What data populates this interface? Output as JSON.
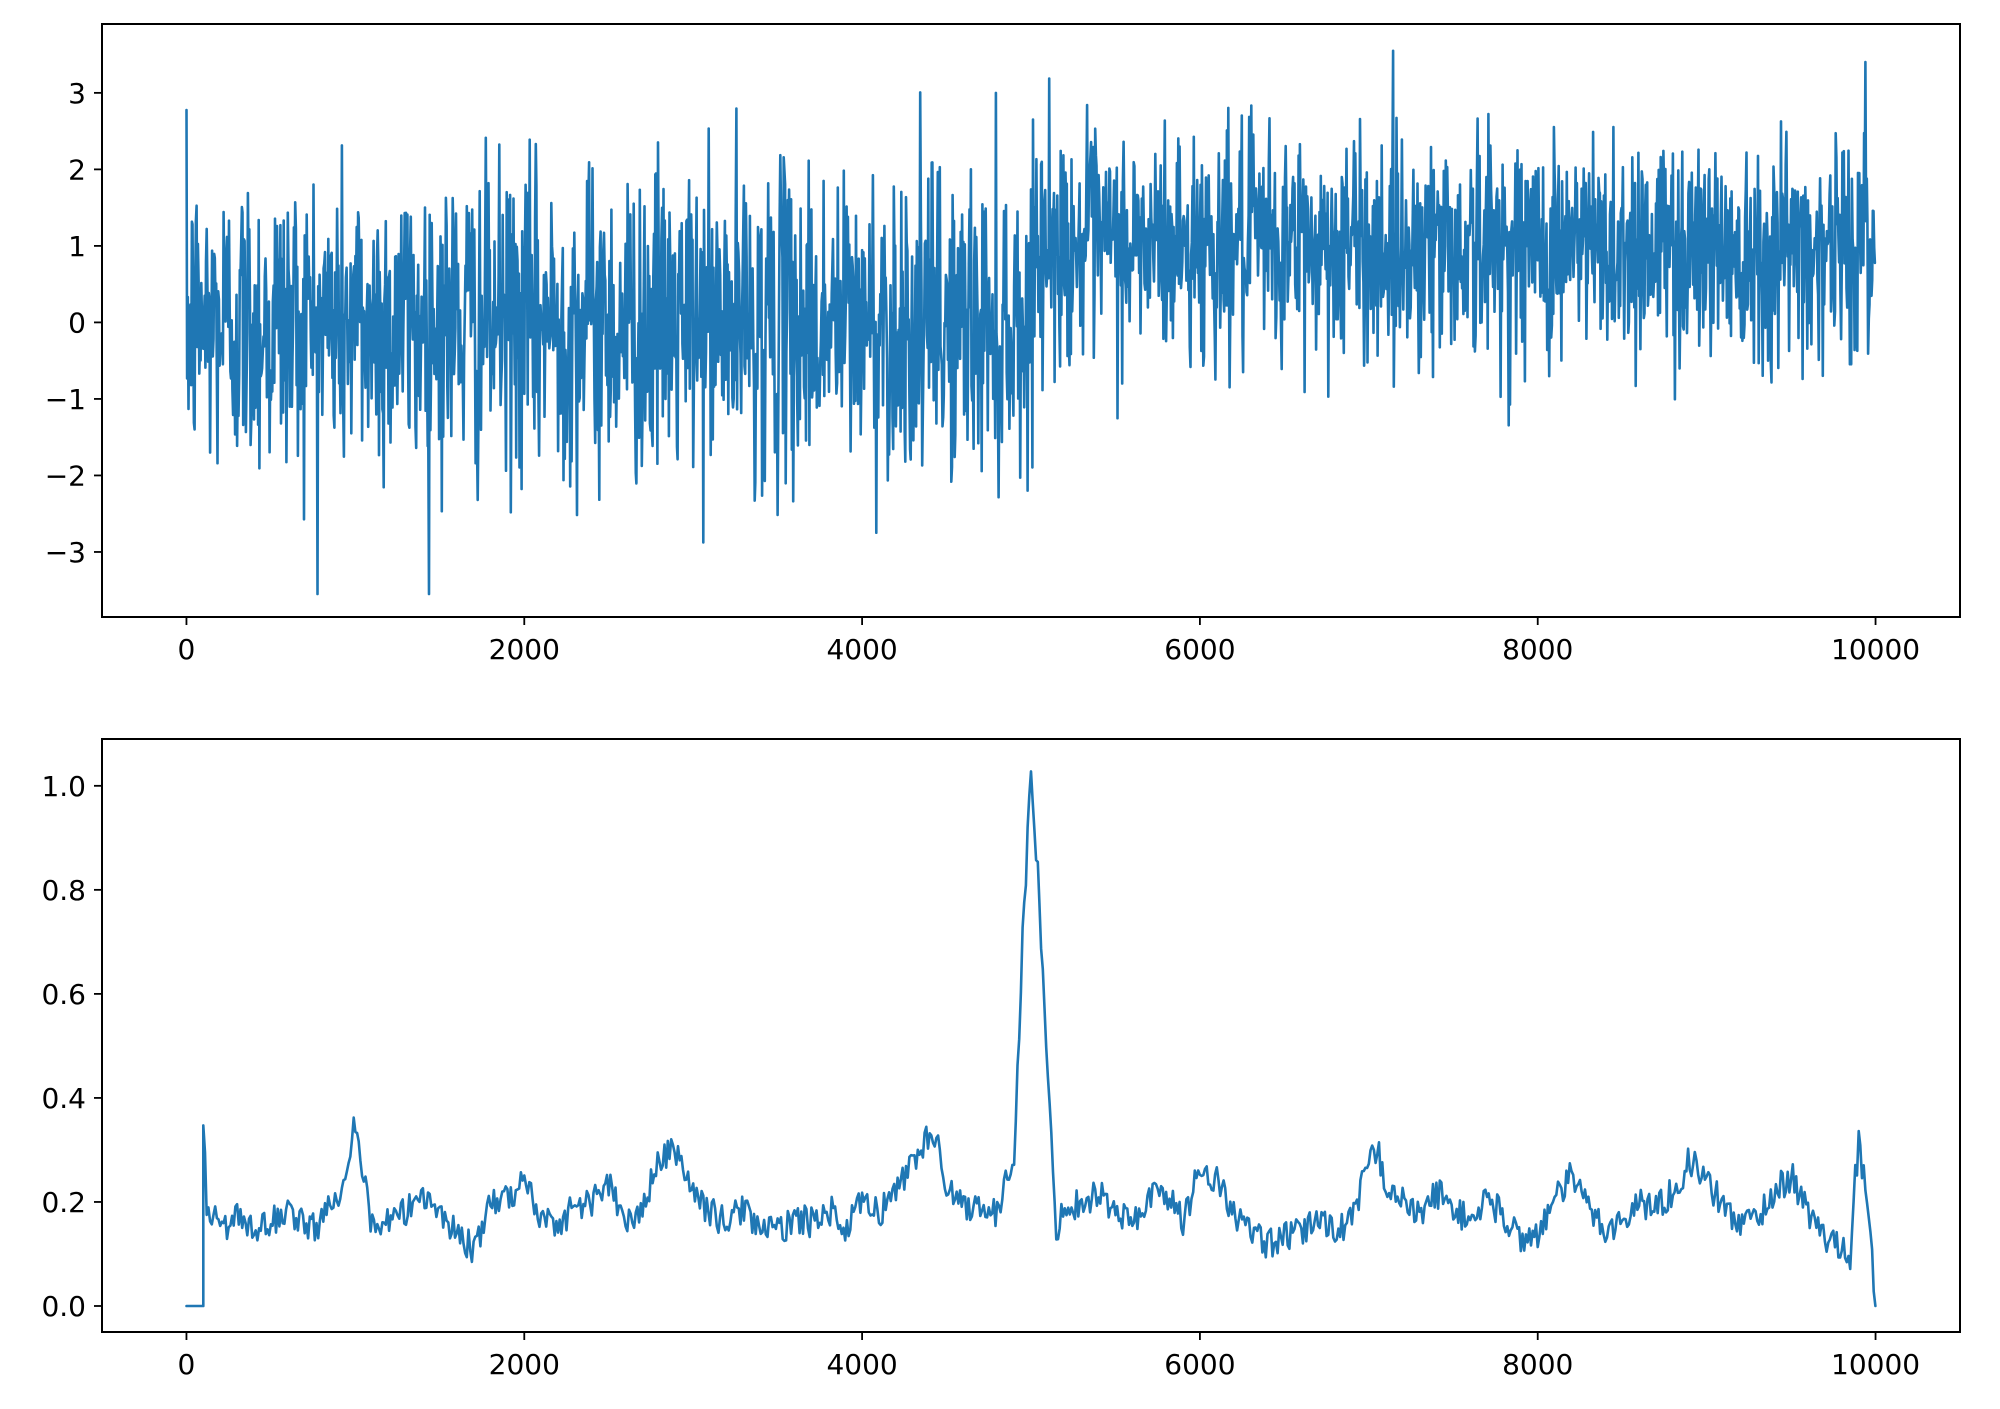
{
  "colors": {
    "series": "#1f77b4",
    "axes": "#000000",
    "background": "#ffffff"
  },
  "chart_data": [
    {
      "type": "line",
      "title": "",
      "xlabel": "",
      "ylabel": "",
      "xlim": [
        -500,
        10500
      ],
      "ylim": [
        -3.85,
        3.9
      ],
      "grid": false,
      "legend": "none",
      "x_ticks": [
        0,
        2000,
        4000,
        6000,
        8000,
        10000
      ],
      "x_tick_labels": [
        "0",
        "2000",
        "4000",
        "6000",
        "8000",
        "10000"
      ],
      "y_ticks": [
        -3,
        -2,
        -1,
        0,
        1,
        2,
        3
      ],
      "y_tick_labels": [
        "−3",
        "−2",
        "−1",
        "0",
        "1",
        "2",
        "3"
      ],
      "series": [
        {
          "x_range": [
            0,
            9999
          ],
          "segments": [
            {
              "x_start": 0,
              "x_end": 5000,
              "mean": 0.0,
              "std": 1.0
            },
            {
              "x_start": 5000,
              "x_end": 9999,
              "mean": 1.0,
              "std": 0.75
            }
          ],
          "y_min": -3.55,
          "y_max": 3.55
        }
      ]
    },
    {
      "type": "line",
      "title": "",
      "xlabel": "",
      "ylabel": "",
      "xlim": [
        -500,
        10500
      ],
      "ylim": [
        -0.05,
        1.09
      ],
      "grid": false,
      "legend": "none",
      "x_ticks": [
        0,
        2000,
        4000,
        6000,
        8000,
        10000
      ],
      "x_tick_labels": [
        "0",
        "2000",
        "4000",
        "6000",
        "8000",
        "10000"
      ],
      "y_ticks": [
        0.0,
        0.2,
        0.4,
        0.6,
        0.8,
        1.0
      ],
      "y_tick_labels": [
        "0.0",
        "0.2",
        "0.4",
        "0.6",
        "0.8",
        "1.0"
      ],
      "series": [
        {
          "x": [
            0,
            100,
            100,
            120,
            150,
            200,
            300,
            400,
            500,
            600,
            700,
            800,
            900,
            950,
            1000,
            1050,
            1100,
            1200,
            1300,
            1400,
            1500,
            1600,
            1700,
            1800,
            1900,
            2000,
            2100,
            2200,
            2300,
            2400,
            2500,
            2600,
            2700,
            2800,
            2900,
            2950,
            3000,
            3100,
            3200,
            3300,
            3400,
            3500,
            3600,
            3700,
            3800,
            3900,
            4000,
            4100,
            4200,
            4300,
            4400,
            4450,
            4500,
            4600,
            4700,
            4800,
            4900,
            4950,
            5000,
            5050,
            5100,
            5150,
            5200,
            5300,
            5400,
            5500,
            5600,
            5700,
            5800,
            5900,
            6000,
            6100,
            6200,
            6300,
            6400,
            6500,
            6600,
            6700,
            6800,
            6900,
            7000,
            7050,
            7100,
            7200,
            7300,
            7400,
            7500,
            7600,
            7700,
            7800,
            7900,
            8000,
            8100,
            8200,
            8300,
            8400,
            8500,
            8600,
            8700,
            8800,
            8900,
            9000,
            9100,
            9200,
            9300,
            9400,
            9500,
            9600,
            9700,
            9800,
            9850,
            9880,
            9900,
            9950,
            9999
          ],
          "values": [
            0.0,
            0.0,
            0.37,
            0.2,
            0.18,
            0.15,
            0.17,
            0.14,
            0.16,
            0.19,
            0.15,
            0.16,
            0.22,
            0.28,
            0.36,
            0.25,
            0.15,
            0.16,
            0.18,
            0.22,
            0.18,
            0.14,
            0.11,
            0.19,
            0.21,
            0.24,
            0.17,
            0.16,
            0.19,
            0.2,
            0.24,
            0.15,
            0.19,
            0.28,
            0.3,
            0.26,
            0.22,
            0.18,
            0.16,
            0.19,
            0.15,
            0.14,
            0.17,
            0.16,
            0.19,
            0.14,
            0.2,
            0.18,
            0.22,
            0.28,
            0.33,
            0.3,
            0.24,
            0.19,
            0.2,
            0.17,
            0.3,
            0.7,
            1.03,
            0.78,
            0.42,
            0.15,
            0.19,
            0.2,
            0.22,
            0.18,
            0.16,
            0.21,
            0.22,
            0.16,
            0.27,
            0.24,
            0.18,
            0.14,
            0.12,
            0.13,
            0.14,
            0.17,
            0.15,
            0.16,
            0.28,
            0.3,
            0.24,
            0.2,
            0.17,
            0.22,
            0.19,
            0.16,
            0.21,
            0.17,
            0.13,
            0.14,
            0.2,
            0.25,
            0.19,
            0.15,
            0.16,
            0.2,
            0.19,
            0.22,
            0.28,
            0.24,
            0.19,
            0.16,
            0.17,
            0.22,
            0.25,
            0.18,
            0.13,
            0.12,
            0.1,
            0.25,
            0.31,
            0.2,
            0.0
          ]
        }
      ]
    }
  ]
}
